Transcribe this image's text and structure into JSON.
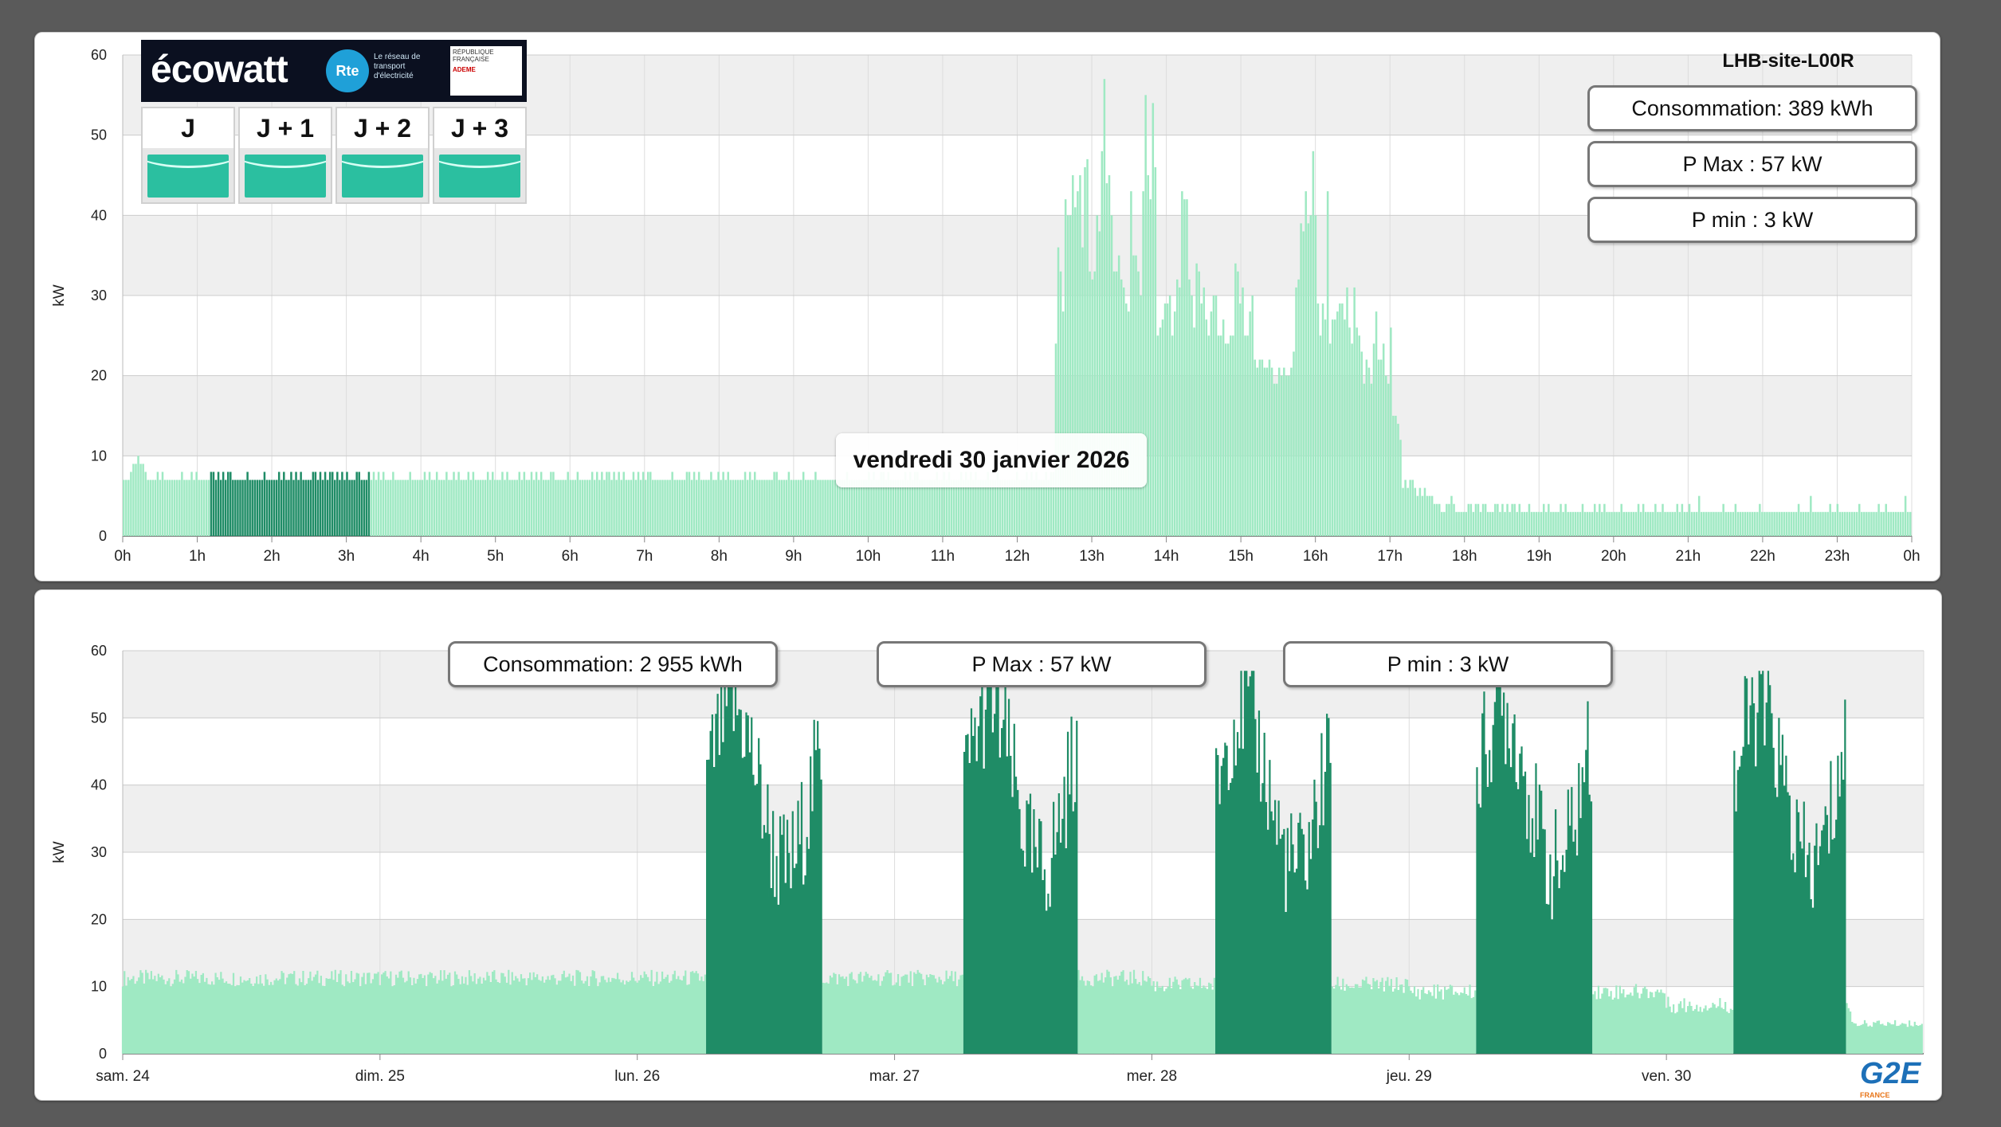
{
  "site_name": "LHB-site-L00R",
  "day_view": {
    "date_label": "vendredi 30 janvier 2026",
    "stats": {
      "consommation": "Consommation: 389 kWh",
      "p_max": "P Max :  57 kW",
      "p_min": "P min : 3 kW"
    }
  },
  "week_view": {
    "stats": {
      "consommation": "Consommation: 2 955 kWh",
      "p_max": "P Max :  57 kW",
      "p_min": "P min : 3 kW"
    }
  },
  "ecowatt": {
    "brand": "écowatt",
    "rte_label": "Rte",
    "rte_text": "Le réseau de transport d'électricité",
    "republic_text": "RÉPUBLIQUE FRANÇAISE",
    "ademe_text": "ADEME",
    "days": [
      "J",
      "J + 1",
      "J + 2",
      "J + 3"
    ],
    "signal_icon": "green-wave-signal"
  },
  "logo": {
    "text": "G2E",
    "sub": "FRANCE"
  },
  "colors": {
    "bar_light": "#9fe9c3",
    "bar_dark": "#1f8c66",
    "panel_bg": "#ffffff",
    "plot_band": "#efefef"
  },
  "chart_data": [
    {
      "type": "bar",
      "ylabel": "kW",
      "ylim": [
        0,
        60
      ],
      "yticks": [
        0,
        10,
        20,
        30,
        40,
        50,
        60
      ],
      "xticks": [
        "0h",
        "1h",
        "2h",
        "3h",
        "4h",
        "5h",
        "6h",
        "7h",
        "8h",
        "9h",
        "10h",
        "11h",
        "12h",
        "13h",
        "14h",
        "15h",
        "16h",
        "17h",
        "18h",
        "19h",
        "20h",
        "21h",
        "22h",
        "23h",
        "0h"
      ],
      "interval_minutes": 10,
      "active_window_hours": [
        6,
        17
      ],
      "values": [
        7,
        7,
        7,
        8,
        9,
        9,
        10,
        9,
        9,
        8,
        7,
        7,
        7,
        7,
        8,
        7,
        8,
        7,
        7,
        7,
        7,
        7,
        7,
        7,
        8,
        7,
        7,
        7,
        8,
        7,
        8,
        7,
        7,
        7,
        7,
        7,
        8,
        8,
        7,
        8,
        7,
        8,
        7,
        8,
        8,
        7,
        7,
        7,
        7,
        7,
        7,
        8,
        7,
        7,
        7,
        7,
        7,
        7,
        8,
        7,
        7,
        7,
        7,
        7,
        8,
        7,
        8,
        7,
        7,
        8,
        7,
        8,
        7,
        8,
        7,
        7,
        7,
        7,
        8,
        8,
        7,
        8,
        7,
        8,
        7,
        8,
        8,
        7,
        8,
        7,
        8,
        7,
        8,
        7,
        7,
        7,
        8,
        8,
        7,
        7,
        7,
        8,
        7,
        8,
        7,
        8,
        7,
        8,
        7,
        7,
        7,
        8,
        7,
        7,
        7,
        7,
        7,
        7,
        8,
        7,
        7,
        7,
        7,
        7,
        8,
        7,
        8,
        7,
        7,
        8,
        7,
        7,
        7,
        8,
        7,
        7,
        8,
        7,
        8,
        7,
        7,
        7,
        8,
        7,
        8,
        7,
        7,
        7,
        7,
        7,
        8,
        7,
        8,
        7,
        7,
        7,
        8,
        7,
        8,
        7,
        7,
        7,
        7,
        8,
        7,
        8,
        7,
        7,
        8,
        7,
        8,
        7,
        8,
        7,
        7,
        7,
        8,
        8,
        7,
        7,
        7,
        7,
        7,
        8,
        7,
        7,
        7,
        8,
        7,
        7,
        7,
        7,
        7,
        8,
        7,
        8,
        7,
        8,
        7,
        8,
        8,
        7,
        8,
        7,
        8,
        7,
        8,
        7,
        7,
        7,
        8,
        7,
        8,
        7,
        8,
        7,
        8,
        8,
        7,
        7,
        7,
        7,
        7,
        7,
        7,
        7,
        8,
        7,
        7,
        7,
        7,
        7,
        8,
        8,
        7,
        8,
        7,
        8,
        7,
        7,
        7,
        7,
        8,
        7,
        7,
        8,
        7,
        8,
        7,
        8,
        7,
        7,
        7,
        7,
        7,
        7,
        8,
        7,
        8,
        7,
        8,
        7,
        7,
        7,
        7,
        7,
        7,
        7,
        8,
        8,
        7,
        7,
        7,
        7,
        8,
        7,
        7,
        7,
        7,
        7,
        8,
        7,
        7,
        7,
        7,
        8,
        7,
        7,
        7,
        7,
        7,
        7,
        7,
        7,
        7,
        7,
        7,
        7,
        8,
        7,
        7,
        7,
        7,
        7,
        7,
        7,
        7,
        8,
        7,
        8,
        7,
        7,
        8,
        8,
        7,
        8,
        7,
        7,
        7,
        7,
        7,
        7,
        8,
        7,
        8,
        7,
        8,
        8,
        7,
        7,
        7,
        7,
        7,
        7,
        7,
        8,
        7,
        7,
        8,
        7,
        8,
        7,
        7,
        7,
        7,
        8,
        7,
        8,
        7,
        8,
        7,
        8,
        7,
        7,
        7,
        7,
        8,
        7,
        7,
        7,
        8,
        7,
        7,
        7,
        7,
        7,
        7,
        7,
        8,
        7,
        7,
        7,
        8,
        7,
        8,
        7,
        8,
        7,
        7,
        7,
        8,
        7,
        8,
        8,
        24,
        36,
        33,
        28,
        42,
        40,
        40,
        45,
        41,
        43,
        45,
        36,
        46,
        47,
        33,
        32,
        33,
        40,
        38,
        48,
        57,
        44,
        45,
        40,
        33,
        33,
        35,
        32,
        31,
        29,
        28,
        43,
        35,
        35,
        33,
        30,
        43,
        55,
        45,
        42,
        54,
        46,
        25,
        26,
        27,
        29,
        29,
        30,
        25,
        28,
        32,
        31,
        43,
        42,
        42,
        32,
        30,
        26,
        34,
        33,
        29,
        31,
        27,
        25,
        28,
        30,
        30,
        25,
        25,
        27,
        24,
        24,
        25,
        25,
        34,
        33,
        29,
        31,
        25,
        25,
        28,
        30,
        22,
        21,
        22,
        22,
        21,
        21,
        22,
        21,
        19,
        19,
        21,
        20,
        21,
        20,
        20,
        21,
        23,
        31,
        32,
        39,
        38,
        43,
        39,
        40,
        48,
        40,
        29,
        25,
        29,
        27,
        43,
        24,
        27,
        27,
        28,
        29,
        29,
        27,
        31,
        26,
        24,
        31,
        26,
        25,
        23,
        19,
        22,
        21,
        19,
        24,
        28,
        22,
        22,
        24,
        20,
        19,
        26,
        15,
        15,
        14,
        12,
        6,
        7,
        6,
        7,
        7,
        6,
        5,
        6,
        5,
        6,
        5,
        5,
        5,
        4,
        4,
        4,
        3,
        3,
        4,
        4,
        5,
        4,
        3,
        3,
        3,
        3,
        3,
        4,
        4,
        3,
        4,
        4,
        3,
        4,
        4,
        3,
        3,
        3,
        4,
        4,
        3,
        4,
        3,
        4,
        3,
        4,
        4,
        3,
        4,
        3,
        3,
        3,
        4,
        3,
        3,
        3,
        3,
        3,
        4,
        3,
        4,
        3,
        3,
        3,
        3,
        4,
        3,
        4,
        3,
        3,
        3,
        3,
        3,
        3,
        4,
        3,
        3,
        3,
        3,
        4,
        3,
        4,
        3,
        4,
        3,
        3,
        3,
        3,
        3,
        3,
        4,
        3,
        3,
        3,
        3,
        3,
        3,
        4,
        3,
        4,
        3,
        3,
        3,
        3,
        4,
        3,
        3,
        4,
        3,
        3,
        3,
        3,
        3,
        4,
        3,
        4,
        3,
        3,
        4,
        3,
        3,
        3,
        5,
        3,
        3,
        3,
        3,
        3,
        3,
        3,
        3,
        3,
        4,
        3,
        3,
        3,
        3,
        4,
        3,
        3,
        3,
        3,
        3,
        3,
        3,
        3,
        3,
        4,
        3,
        3,
        3,
        3,
        3,
        3,
        3,
        3,
        3,
        3,
        3,
        3,
        3,
        3,
        3,
        4,
        3,
        3,
        3,
        3,
        5,
        3,
        3,
        3,
        3,
        3,
        3,
        3,
        4,
        3,
        3,
        4,
        3,
        3,
        3,
        3,
        3,
        3,
        3,
        3,
        4,
        3,
        3,
        3,
        3,
        3,
        3,
        3,
        4,
        3,
        3,
        4,
        3,
        3,
        3,
        3,
        3,
        3,
        3,
        5,
        3,
        3
      ]
    },
    {
      "type": "bar",
      "ylabel": "kW",
      "ylim": [
        0,
        60
      ],
      "yticks": [
        0,
        10,
        20,
        30,
        40,
        50,
        60
      ],
      "xticks": [
        "sam. 24",
        "dim. 25",
        "lun. 26",
        "mar. 27",
        "mer. 28",
        "jeu. 29",
        "ven. 30"
      ],
      "interval_minutes": 10,
      "work_windows_day_fraction": [
        [
          2.27,
          2.72
        ],
        [
          3.27,
          3.71
        ],
        [
          4.25,
          4.7
        ],
        [
          5.26,
          5.71
        ],
        [
          6.26,
          6.7
        ]
      ],
      "baseline_by_day": [
        10,
        10,
        10,
        10,
        9,
        8,
        6
      ],
      "peaks_kW": [
        57,
        57,
        57,
        57,
        57
      ]
    }
  ]
}
